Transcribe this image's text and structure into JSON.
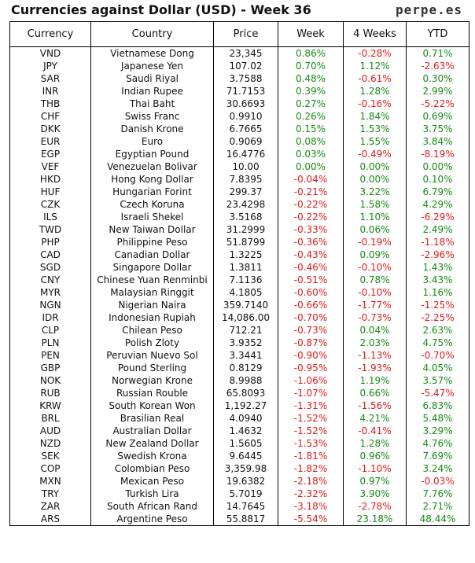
{
  "title": "Currencies against Dollar (USD) - Week 36",
  "site": "perpe.es",
  "columns": [
    "Currency",
    "Country",
    "Price",
    "Week",
    "4 Weeks",
    "YTD"
  ],
  "colors": {
    "positive": "#178a17",
    "negative": "#e01b1b"
  },
  "rows": [
    [
      "VND",
      "Vietnamese Dong",
      "23,345",
      "0.86%",
      "-0.28%",
      "0.71%"
    ],
    [
      "JPY",
      "Japanese Yen",
      "107.02",
      "0.70%",
      "1.12%",
      "-2.63%"
    ],
    [
      "SAR",
      "Saudi Riyal",
      "3.7588",
      "0.48%",
      "-0.61%",
      "0.30%"
    ],
    [
      "INR",
      "Indian Rupee",
      "71.7153",
      "0.39%",
      "1.28%",
      "2.99%"
    ],
    [
      "THB",
      "Thai Baht",
      "30.6693",
      "0.27%",
      "-0.16%",
      "-5.22%"
    ],
    [
      "CHF",
      "Swiss Franc",
      "0.9910",
      "0.26%",
      "1.84%",
      "0.69%"
    ],
    [
      "DKK",
      "Danish Krone",
      "6.7665",
      "0.15%",
      "1.53%",
      "3.75%"
    ],
    [
      "EUR",
      "Euro",
      "0.9069",
      "0.08%",
      "1.55%",
      "3.84%"
    ],
    [
      "EGP",
      "Egyptian Pound",
      "16.4776",
      "0.03%",
      "-0.49%",
      "-8.19%"
    ],
    [
      "VEF",
      "Venezuelan Bolivar",
      "10.00",
      "0.00%",
      "0.00%",
      "0.00%"
    ],
    [
      "HKD",
      "Hong Kong Dollar",
      "7.8395",
      "-0.04%",
      "0.00%",
      "0.10%"
    ],
    [
      "HUF",
      "Hungarian Forint",
      "299.37",
      "-0.21%",
      "3.22%",
      "6.79%"
    ],
    [
      "CZK",
      "Czech Koruna",
      "23.4298",
      "-0.22%",
      "1.58%",
      "4.29%"
    ],
    [
      "ILS",
      "Israeli Shekel",
      "3.5168",
      "-0.22%",
      "1.10%",
      "-6.29%"
    ],
    [
      "TWD",
      "New Taiwan Dollar",
      "31.2999",
      "-0.33%",
      "0.06%",
      "2.49%"
    ],
    [
      "PHP",
      "Philippine Peso",
      "51.8799",
      "-0.36%",
      "-0.19%",
      "-1.18%"
    ],
    [
      "CAD",
      "Canadian Dollar",
      "1.3225",
      "-0.43%",
      "0.09%",
      "-2.96%"
    ],
    [
      "SGD",
      "Singapore Dollar",
      "1.3811",
      "-0.46%",
      "-0.10%",
      "1.43%"
    ],
    [
      "CNY",
      "Chinese Yuan Renminbi",
      "7.1136",
      "-0.51%",
      "0.78%",
      "3.43%"
    ],
    [
      "MYR",
      "Malaysian Ringgit",
      "4.1805",
      "-0.60%",
      "-0.10%",
      "1.16%"
    ],
    [
      "NGN",
      "Nigerian Naira",
      "359.7140",
      "-0.66%",
      "-1.77%",
      "-1.25%"
    ],
    [
      "IDR",
      "Indonesian Rupiah",
      "14,086.00",
      "-0.70%",
      "-0.73%",
      "-2.25%"
    ],
    [
      "CLP",
      "Chilean Peso",
      "712.21",
      "-0.73%",
      "0.04%",
      "2.63%"
    ],
    [
      "PLN",
      "Polish Zloty",
      "3.9352",
      "-0.87%",
      "2.03%",
      "4.75%"
    ],
    [
      "PEN",
      "Peruvian Nuevo Sol",
      "3.3441",
      "-0.90%",
      "-1.13%",
      "-0.70%"
    ],
    [
      "GBP",
      "Pound Sterling",
      "0.8129",
      "-0.95%",
      "-1.93%",
      "4.05%"
    ],
    [
      "NOK",
      "Norwegian Krone",
      "8.9988",
      "-1.06%",
      "1.19%",
      "3.57%"
    ],
    [
      "RUB",
      "Russian Rouble",
      "65.8093",
      "-1.07%",
      "0.66%",
      "-5.47%"
    ],
    [
      "KRW",
      "South Korean Won",
      "1,192.27",
      "-1.31%",
      "-1.56%",
      "6.83%"
    ],
    [
      "BRL",
      "Brasilian Real",
      "4.0940",
      "-1.52%",
      "4.21%",
      "5.48%"
    ],
    [
      "AUD",
      "Australian Dollar",
      "1.4632",
      "-1.52%",
      "-0.41%",
      "3.29%"
    ],
    [
      "NZD",
      "New Zealand Dollar",
      "1.5605",
      "-1.53%",
      "1.28%",
      "4.76%"
    ],
    [
      "SEK",
      "Swedish Krona",
      "9.6445",
      "-1.81%",
      "0.96%",
      "7.69%"
    ],
    [
      "COP",
      "Colombian Peso",
      "3,359.98",
      "-1.82%",
      "-1.10%",
      "3.24%"
    ],
    [
      "MXN",
      "Mexican Peso",
      "19.6382",
      "-2.18%",
      "0.97%",
      "-0.03%"
    ],
    [
      "TRY",
      "Turkish Lira",
      "5.7019",
      "-2.32%",
      "3.90%",
      "7.76%"
    ],
    [
      "ZAR",
      "South African Rand",
      "14.7645",
      "-3.18%",
      "-2.78%",
      "2.71%"
    ],
    [
      "ARS",
      "Argentine Peso",
      "55.8817",
      "-5.54%",
      "23.18%",
      "48.44%"
    ]
  ]
}
